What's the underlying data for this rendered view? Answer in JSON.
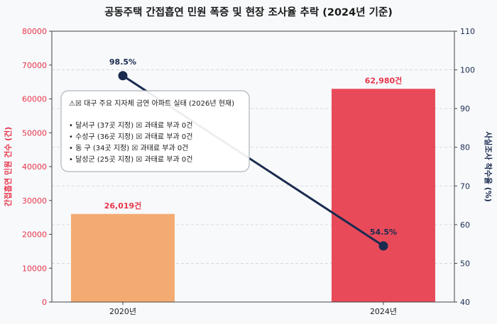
{
  "chart_data": {
    "type": "bar+line",
    "title": "공동주택 간접흡연 민원 폭증 및 현장 조사율 추락 (2024년 기준)",
    "categories": [
      "2020년",
      "2024년"
    ],
    "bar_series": {
      "axis": "left",
      "values": [
        26019,
        62980
      ],
      "data_labels": [
        "26,019건",
        "62,980건"
      ],
      "colors": [
        "#f4ab72",
        "#e84a5a"
      ]
    },
    "line_series": {
      "axis": "right",
      "values": [
        98.5,
        54.5
      ],
      "data_labels": [
        "98.5%",
        "54.5%"
      ],
      "color": "#1b2b4f"
    },
    "left_axis": {
      "label": "간접흡연 민원 건수 (건)",
      "range": [
        0,
        80000
      ],
      "ticks": [
        "0",
        "10000",
        "20000",
        "30000",
        "40000",
        "50000",
        "60000",
        "70000",
        "80000"
      ],
      "color": "#e8354a"
    },
    "right_axis": {
      "label": "사실조사 착수율 (%)",
      "range": [
        40,
        110
      ],
      "ticks": [
        "40",
        "50",
        "60",
        "70",
        "80",
        "90",
        "100",
        "110"
      ],
      "color": "#1b2b4f"
    },
    "grid": "horizontal dashed",
    "annotation": {
      "title": "⚠☒ 대구 주요 지자체 금연 아파트 실태 (2026년 현재)",
      "lines": [
        "• 달서구 (37곳 지정) ☒ 과태료 부과 0건",
        "• 수성구 (36곳 지정) ☒ 과태료 부과 0건",
        "• 동  구 (34곳 지정) ☒ 과태료 부과 0건",
        "• 달성군 (25곳 지정) ☒ 과태료 부과 0건"
      ]
    }
  }
}
